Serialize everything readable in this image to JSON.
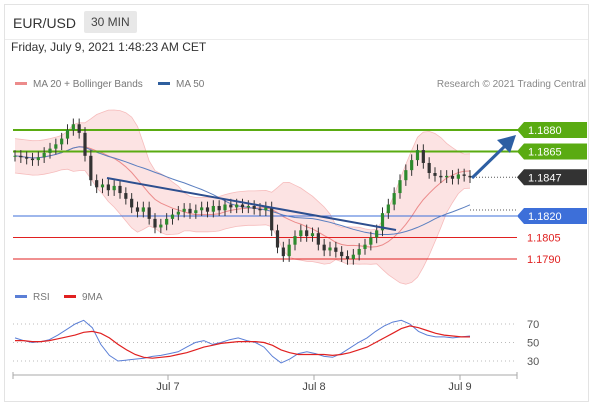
{
  "header": {
    "symbol": "EUR/USD",
    "timeframe": "30 MIN"
  },
  "date_line": "Friday, July 9, 2021 1:48:23 AM CET",
  "legend": {
    "ma20": {
      "label": "MA 20 + Bollinger Bands",
      "color": "#ec8b8b"
    },
    "ma50": {
      "label": "MA 50",
      "color": "#2f5f9e"
    },
    "copyright": "Research © 2021 Trading Central"
  },
  "rsi_legend": {
    "rsi": {
      "label": "RSI",
      "color": "#5b7fd6"
    },
    "ma9": {
      "label": "9MA",
      "color": "#e02020"
    }
  },
  "colors": {
    "green": "#5aab12",
    "blue_line": "#3d6fd9",
    "red_line": "#f09a9a",
    "price_tag": "#333333",
    "arrow": "#2d5fa3",
    "candle": "#333333"
  },
  "chart_data": [
    {
      "type": "candlestick",
      "symbol": "EUR/USD",
      "interval": "30 MIN",
      "x_ticks": [
        "Jul 7",
        "Jul 8",
        "Jul 9"
      ],
      "price_levels": [
        {
          "value": "1.1880",
          "kind": "resistance",
          "color": "#5aab12",
          "tag": "green"
        },
        {
          "value": "1.1865",
          "kind": "resistance",
          "color": "#5aab12",
          "tag": "green"
        },
        {
          "value": "1.1847",
          "kind": "last price",
          "color": "#333333",
          "tag": "dark"
        },
        {
          "value": "1.1820",
          "kind": "pivot",
          "color": "#3d6fd9",
          "tag": "blue"
        },
        {
          "value": "1.1805",
          "kind": "support",
          "color": "#e02020",
          "tag": "text"
        },
        {
          "value": "1.1790",
          "kind": "support",
          "color": "#e02020",
          "tag": "text"
        }
      ],
      "close_approx": [
        1.1862,
        1.1861,
        1.186,
        1.1859,
        1.1861,
        1.1864,
        1.1867,
        1.187,
        1.1874,
        1.188,
        1.1884,
        1.1878,
        1.1862,
        1.1845,
        1.184,
        1.1842,
        1.1838,
        1.1841,
        1.1836,
        1.1832,
        1.1826,
        1.1823,
        1.1826,
        1.1818,
        1.1812,
        1.1814,
        1.1818,
        1.1821,
        1.1823,
        1.1825,
        1.1822,
        1.1824,
        1.1826,
        1.1823,
        1.1827,
        1.1824,
        1.1828,
        1.1826,
        1.1828,
        1.1826,
        1.1827,
        1.1825,
        1.1824,
        1.1826,
        1.181,
        1.1798,
        1.1792,
        1.18,
        1.1806,
        1.181,
        1.1806,
        1.1808,
        1.18,
        1.1796,
        1.1798,
        1.1795,
        1.1792,
        1.179,
        1.1793,
        1.1797,
        1.18,
        1.1805,
        1.181,
        1.1822,
        1.1828,
        1.1836,
        1.1845,
        1.1852,
        1.1859,
        1.1866,
        1.1857,
        1.185,
        1.1848,
        1.1847,
        1.1848,
        1.1846,
        1.1849,
        1.1848,
        1.1847
      ],
      "overlays": [
        "MA 20 + Bollinger Bands",
        "MA 50"
      ],
      "trendline": "descending, Jul 6 → Jul 8",
      "forecast_arrow": "from 1.1847 up toward 1.1880"
    },
    {
      "type": "line",
      "name": "RSI panel",
      "y_ticks": [
        70,
        50,
        30
      ],
      "series": [
        {
          "name": "RSI",
          "color": "#5b7fd6",
          "values": [
            55,
            52,
            50,
            51,
            53,
            58,
            64,
            70,
            74,
            66,
            48,
            36,
            30,
            31,
            32,
            33,
            35,
            36,
            38,
            40,
            45,
            50,
            52,
            48,
            50,
            53,
            55,
            52,
            50,
            45,
            35,
            28,
            32,
            38,
            40,
            38,
            35,
            34,
            38,
            44,
            50,
            55,
            62,
            68,
            72,
            74,
            70,
            62,
            58,
            56,
            56,
            55,
            56,
            57
          ]
        },
        {
          "name": "9MA",
          "color": "#e02020",
          "values": [
            52,
            52,
            51,
            51,
            52,
            54,
            56,
            58,
            61,
            62,
            60,
            55,
            48,
            42,
            37,
            34,
            33,
            34,
            35,
            37,
            39,
            42,
            45,
            47,
            49,
            50,
            51,
            51,
            51,
            50,
            47,
            42,
            39,
            37,
            37,
            37,
            37,
            36,
            37,
            39,
            42,
            45,
            50,
            55,
            60,
            65,
            68,
            66,
            63,
            60,
            58,
            57,
            56,
            56
          ]
        }
      ]
    }
  ]
}
